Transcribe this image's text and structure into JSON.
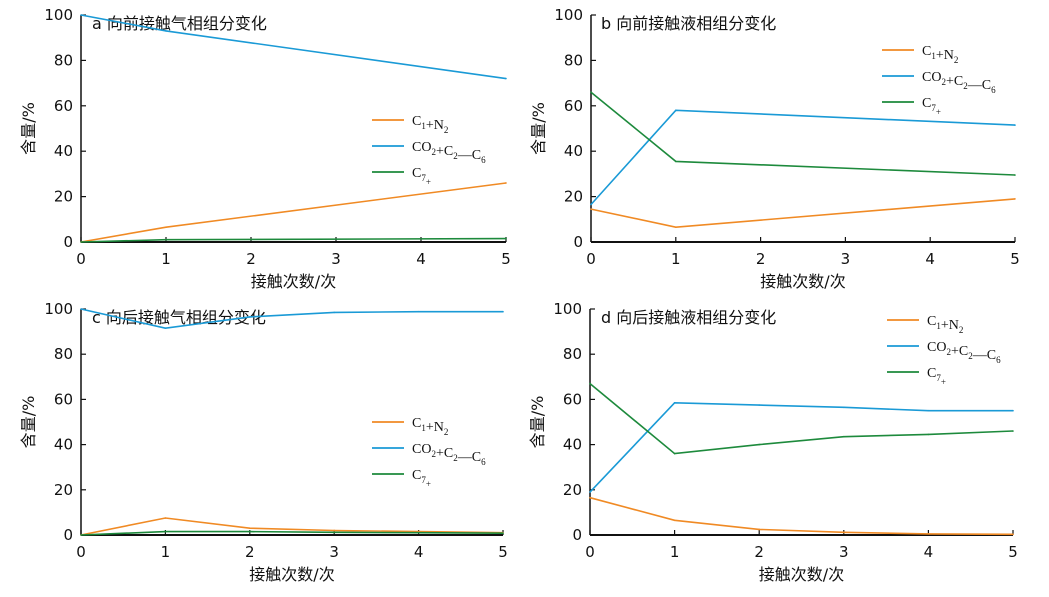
{
  "colors": {
    "c1n2": "#f08a24",
    "co2c2c6": "#1a9ad6",
    "c7": "#1d8a3c",
    "axis": "#111111"
  },
  "chart_data": [
    {
      "id": "a",
      "type": "line",
      "title": "a 向前接触气相组分变化",
      "xlabel": "接触次数/次",
      "ylabel": "含量/%",
      "xlim": [
        0,
        5
      ],
      "ylim": [
        0,
        100
      ],
      "xticks": [
        "0",
        "1",
        "2",
        "3",
        "4",
        "5"
      ],
      "yticks": [
        "0",
        "20",
        "40",
        "60",
        "80",
        "100"
      ],
      "legend_position": "middle-right",
      "x": [
        0,
        1,
        5
      ],
      "series": [
        {
          "key": "c1n2",
          "name": "C1+N2",
          "x": [
            0,
            1,
            5
          ],
          "values": [
            0,
            6.5,
            26
          ]
        },
        {
          "key": "co2c2c6",
          "name": "CO2+C2—C6",
          "x": [
            0,
            1,
            5
          ],
          "values": [
            100,
            93,
            72
          ]
        },
        {
          "key": "c7",
          "name": "C7+",
          "x": [
            0,
            1,
            5
          ],
          "values": [
            0,
            1,
            1.5
          ]
        }
      ]
    },
    {
      "id": "b",
      "type": "line",
      "title": "b 向前接触液相组分变化",
      "xlabel": "接触次数/次",
      "ylabel": "含量/%",
      "xlim": [
        0,
        5
      ],
      "ylim": [
        0,
        100
      ],
      "xticks": [
        "0",
        "1",
        "2",
        "3",
        "4",
        "5"
      ],
      "yticks": [
        "0",
        "20",
        "40",
        "60",
        "80",
        "100"
      ],
      "legend_position": "top-right",
      "series": [
        {
          "key": "c1n2",
          "name": "C1+N2",
          "x": [
            0,
            1,
            5
          ],
          "values": [
            14.5,
            6.5,
            19
          ]
        },
        {
          "key": "co2c2c6",
          "name": "CO2+C2—C6",
          "x": [
            0,
            1,
            5
          ],
          "values": [
            16.5,
            58,
            51.5
          ]
        },
        {
          "key": "c7",
          "name": "C7+",
          "x": [
            0,
            1,
            5
          ],
          "values": [
            66,
            35.5,
            29.5
          ]
        }
      ]
    },
    {
      "id": "c",
      "type": "line",
      "title": "c 向后接触气相组分变化",
      "xlabel": "接触次数/次",
      "ylabel": "含量/%",
      "xlim": [
        0,
        5
      ],
      "ylim": [
        0,
        100
      ],
      "xticks": [
        "0",
        "1",
        "2",
        "3",
        "4",
        "5"
      ],
      "yticks": [
        "0",
        "20",
        "40",
        "60",
        "80",
        "100"
      ],
      "legend_position": "bottom-right",
      "series": [
        {
          "key": "c1n2",
          "name": "C1+N2",
          "x": [
            0,
            1,
            2,
            3,
            4,
            5
          ],
          "values": [
            0,
            7.5,
            3,
            2,
            1.5,
            1
          ]
        },
        {
          "key": "co2c2c6",
          "name": "CO2+C2—C6",
          "x": [
            0,
            1,
            2,
            3,
            4,
            5
          ],
          "values": [
            100,
            91.5,
            96.5,
            98.5,
            98.8,
            98.8
          ]
        },
        {
          "key": "c7",
          "name": "C7+",
          "x": [
            0,
            1,
            2,
            3,
            4,
            5
          ],
          "values": [
            0,
            1.5,
            1.5,
            1.2,
            1,
            0.8
          ]
        }
      ]
    },
    {
      "id": "d",
      "type": "line",
      "title": "d 向后接触液相组分变化",
      "xlabel": "接触次数/次",
      "ylabel": "含量/%",
      "xlim": [
        0,
        5
      ],
      "ylim": [
        0,
        100
      ],
      "xticks": [
        "0",
        "1",
        "2",
        "3",
        "4",
        "5"
      ],
      "yticks": [
        "0",
        "20",
        "40",
        "60",
        "80",
        "100"
      ],
      "legend_position": "top-right",
      "series": [
        {
          "key": "c1n2",
          "name": "C1+N2",
          "x": [
            0,
            1,
            2,
            3,
            4,
            5
          ],
          "values": [
            16.5,
            6.5,
            2.5,
            1.2,
            0.5,
            0.3
          ]
        },
        {
          "key": "co2c2c6",
          "name": "CO2+C2—C6",
          "x": [
            0,
            1,
            2,
            3,
            4,
            5
          ],
          "values": [
            19,
            58.5,
            57.5,
            56.5,
            55,
            55
          ]
        },
        {
          "key": "c7",
          "name": "C7+",
          "x": [
            0,
            1,
            2,
            3,
            4,
            5
          ],
          "values": [
            67,
            36,
            40,
            43.5,
            44.5,
            46
          ]
        }
      ]
    }
  ]
}
